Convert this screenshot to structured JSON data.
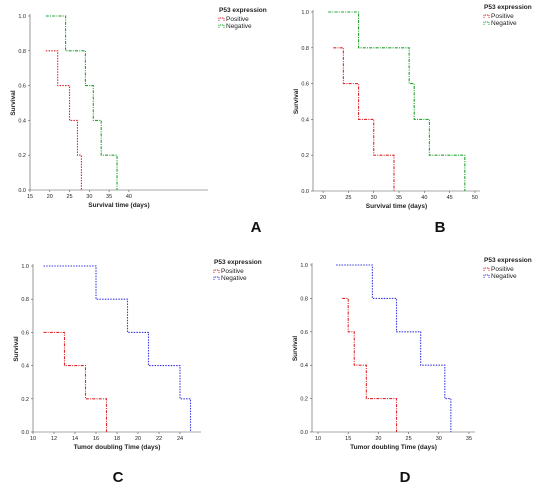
{
  "chart_data": [
    {
      "type": "line",
      "panel_label": "A",
      "xlabel": "Survival time (days)",
      "ylabel": "Survival",
      "xlim": [
        15,
        60
      ],
      "xticks": [
        "15",
        "20",
        "25",
        "30",
        "35",
        "40"
      ],
      "ylim": [
        0,
        1
      ],
      "yticks": [
        "0.0",
        "0.2",
        "0.4",
        "0.6",
        "0.8",
        "1.0"
      ],
      "legend_title": "P53 expression",
      "legend_position": "top-right",
      "grid": false,
      "series": [
        {
          "name": "Positive",
          "color": "#e0262b",
          "dash": "1.5,1.2",
          "x": [
            19,
            22,
            22,
            25,
            25,
            27,
            27,
            28,
            28
          ],
          "y": [
            0.8,
            0.8,
            0.6,
            0.6,
            0.4,
            0.4,
            0.2,
            0.2,
            0.0
          ]
        },
        {
          "name": "Negative",
          "color": "#1fa32b",
          "dash": "3,1.2,1,1.2",
          "x": [
            19,
            24,
            24,
            29,
            29,
            31,
            31,
            33,
            33,
            37,
            37
          ],
          "y": [
            1.0,
            1.0,
            0.8,
            0.8,
            0.6,
            0.6,
            0.4,
            0.4,
            0.2,
            0.2,
            0.0
          ]
        }
      ]
    },
    {
      "type": "line",
      "panel_label": "B",
      "xlabel": "Survival time (days)",
      "ylabel": "Survival",
      "xlim": [
        18,
        51
      ],
      "xticks": [
        "20",
        "25",
        "30",
        "35",
        "40",
        "45",
        "50"
      ],
      "ylim": [
        0,
        1
      ],
      "yticks": [
        "0.0",
        "0.2",
        "0.4",
        "0.6",
        "0.8",
        "1.0"
      ],
      "legend_title": "P53 expression",
      "legend_position": "top-right",
      "grid": false,
      "series": [
        {
          "name": "Positive",
          "color": "#e0262b",
          "dash": "3,1.2,1,1.2",
          "x": [
            22,
            24,
            24,
            27,
            27,
            30,
            30,
            34,
            34
          ],
          "y": [
            0.8,
            0.8,
            0.6,
            0.6,
            0.4,
            0.4,
            0.2,
            0.2,
            0.0
          ]
        },
        {
          "name": "Negative",
          "color": "#1fa32b",
          "dash": "3,1.2,1,1.2",
          "x": [
            21,
            27,
            27,
            37,
            37,
            38,
            38,
            41,
            41,
            48,
            48
          ],
          "y": [
            1.0,
            1.0,
            0.8,
            0.8,
            0.6,
            0.6,
            0.4,
            0.4,
            0.2,
            0.2,
            0.0
          ]
        }
      ]
    },
    {
      "type": "line",
      "panel_label": "C",
      "xlabel": "Tumor doubling Time (days)",
      "ylabel": "Survival",
      "xlim": [
        10,
        26
      ],
      "xticks": [
        "10",
        "12",
        "14",
        "16",
        "18",
        "20",
        "22",
        "24"
      ],
      "ylim": [
        0,
        1
      ],
      "yticks": [
        "0.0",
        "0.2",
        "0.4",
        "0.6",
        "0.8",
        "1.0"
      ],
      "legend_title": "P53 expression",
      "legend_position": "top-right",
      "grid": false,
      "series": [
        {
          "name": "Positive",
          "color": "#e0262b",
          "dash": "3,1.2,1,1.2",
          "x": [
            11,
            13,
            13,
            15,
            15,
            17,
            17
          ],
          "y": [
            0.6,
            0.6,
            0.4,
            0.4,
            0.2,
            0.2,
            0.0
          ]
        },
        {
          "name": "Negative",
          "color": "#3a3ae0",
          "dash": "1.5,1.2",
          "x": [
            11,
            16,
            16,
            19,
            19,
            21,
            21,
            24,
            24,
            25,
            25
          ],
          "y": [
            1.0,
            1.0,
            0.8,
            0.8,
            0.6,
            0.6,
            0.4,
            0.4,
            0.2,
            0.2,
            0.0
          ]
        }
      ]
    },
    {
      "type": "line",
      "panel_label": "D",
      "xlabel": "Tumor doubling Time (days)",
      "ylabel": "Survival",
      "xlim": [
        9,
        36
      ],
      "xticks": [
        "10",
        "15",
        "20",
        "25",
        "30",
        "35"
      ],
      "ylim": [
        0,
        1
      ],
      "yticks": [
        "0.0",
        "0.2",
        "0.4",
        "0.6",
        "0.8",
        "1.0"
      ],
      "legend_title": "P53 expression",
      "legend_position": "top-right",
      "grid": false,
      "series": [
        {
          "name": "Positive",
          "color": "#e0262b",
          "dash": "3,1.2,1,1.2",
          "x": [
            14,
            15,
            15,
            16,
            16,
            18,
            18,
            23,
            23
          ],
          "y": [
            0.8,
            0.8,
            0.6,
            0.6,
            0.4,
            0.4,
            0.2,
            0.2,
            0.0
          ]
        },
        {
          "name": "Negative",
          "color": "#3a3ae0",
          "dash": "1.5,1.2",
          "x": [
            13,
            19,
            19,
            23,
            23,
            27,
            27,
            31,
            31,
            32,
            32
          ],
          "y": [
            1.0,
            1.0,
            0.8,
            0.8,
            0.6,
            0.6,
            0.4,
            0.4,
            0.2,
            0.2,
            0.0
          ]
        }
      ]
    }
  ]
}
